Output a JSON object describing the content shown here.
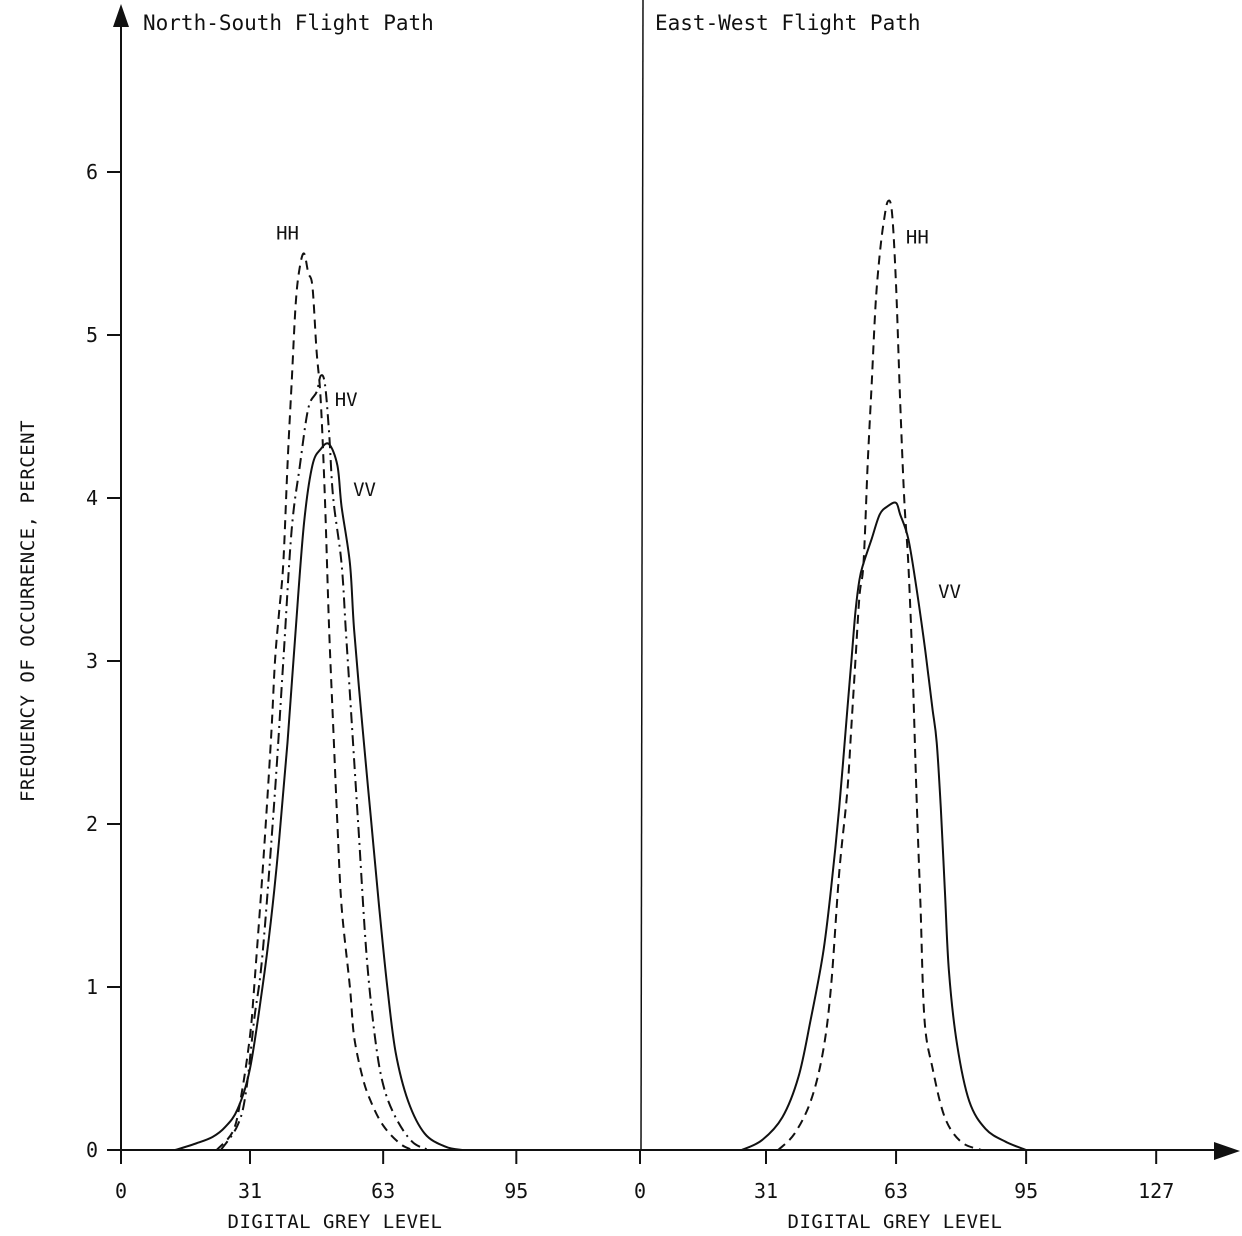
{
  "chart_data": {
    "type": "line",
    "y_axis": {
      "label": "FREQUENCY OF OCCURRENCE, PERCENT",
      "range": [
        0,
        6.8
      ],
      "ticks": [
        0,
        1,
        2,
        3,
        4,
        5,
        6
      ],
      "tick_labels": [
        "0",
        "1",
        "2",
        "3",
        "4",
        "5",
        "6"
      ]
    },
    "grid": false,
    "panels": [
      {
        "title": "North-South Flight Path",
        "xlabel": "DIGITAL GREY LEVEL",
        "xlim": [
          0,
          127
        ],
        "x_ticks": [
          0,
          31,
          63,
          95
        ],
        "x_tick_labels": [
          "0",
          "31",
          "63",
          "95"
        ],
        "series": [
          {
            "name": "HH",
            "line_style": "dashed",
            "points": [
              [
                23,
                0
              ],
              [
                27,
                0.12
              ],
              [
                29,
                0.35
              ],
              [
                31,
                0.7
              ],
              [
                32,
                1.0
              ],
              [
                34,
                1.7
              ],
              [
                36,
                2.5
              ],
              [
                37,
                3.0
              ],
              [
                38,
                3.3
              ],
              [
                39,
                3.6
              ],
              [
                40,
                4.2
              ],
              [
                41,
                4.7
              ],
              [
                42,
                5.2
              ],
              [
                43,
                5.42
              ],
              [
                44,
                5.5
              ],
              [
                45,
                5.38
              ],
              [
                46,
                5.3
              ],
              [
                47,
                4.9
              ],
              [
                48,
                4.6
              ],
              [
                49,
                4.0
              ],
              [
                50,
                3.2
              ],
              [
                51,
                2.6
              ],
              [
                52,
                2.0
              ],
              [
                53,
                1.5
              ],
              [
                55,
                1.0
              ],
              [
                56,
                0.7
              ],
              [
                58,
                0.45
              ],
              [
                60,
                0.3
              ],
              [
                63,
                0.15
              ],
              [
                67,
                0.04
              ],
              [
                70,
                0
              ]
            ]
          },
          {
            "name": "HV",
            "line_style": "dash-dot",
            "points": [
              [
                24,
                0
              ],
              [
                28,
                0.15
              ],
              [
                30,
                0.35
              ],
              [
                32,
                0.8
              ],
              [
                34,
                1.2
              ],
              [
                37,
                2.2
              ],
              [
                39,
                3.0
              ],
              [
                41,
                3.8
              ],
              [
                43,
                4.2
              ],
              [
                45,
                4.55
              ],
              [
                47,
                4.65
              ],
              [
                48,
                4.75
              ],
              [
                49,
                4.7
              ],
              [
                50,
                4.4
              ],
              [
                51,
                4.0
              ],
              [
                53,
                3.6
              ],
              [
                54,
                3.2
              ],
              [
                55,
                2.8
              ],
              [
                57,
                2.0
              ],
              [
                59,
                1.2
              ],
              [
                61,
                0.7
              ],
              [
                63,
                0.4
              ],
              [
                66,
                0.2
              ],
              [
                70,
                0.05
              ],
              [
                74,
                0
              ]
            ]
          },
          {
            "name": "VV",
            "line_style": "solid",
            "points": [
              [
                13,
                0
              ],
              [
                18,
                0.04
              ],
              [
                22,
                0.08
              ],
              [
                25,
                0.14
              ],
              [
                28,
                0.25
              ],
              [
                31,
                0.5
              ],
              [
                34,
                1.0
              ],
              [
                36,
                1.4
              ],
              [
                38,
                1.9
              ],
              [
                40,
                2.5
              ],
              [
                42,
                3.2
              ],
              [
                44,
                3.85
              ],
              [
                46,
                4.2
              ],
              [
                48,
                4.3
              ],
              [
                50,
                4.33
              ],
              [
                52,
                4.2
              ],
              [
                53,
                3.95
              ],
              [
                55,
                3.6
              ],
              [
                56,
                3.2
              ],
              [
                58,
                2.6
              ],
              [
                60,
                2.05
              ],
              [
                62,
                1.5
              ],
              [
                64,
                1.0
              ],
              [
                66,
                0.6
              ],
              [
                69,
                0.3
              ],
              [
                73,
                0.1
              ],
              [
                78,
                0.02
              ],
              [
                82,
                0
              ]
            ]
          }
        ]
      },
      {
        "title": "East-West Flight Path",
        "xlabel": "DIGITAL GREY LEVEL",
        "xlim": [
          0,
          147
        ],
        "x_ticks": [
          0,
          31,
          63,
          95,
          127
        ],
        "x_tick_labels": [
          "0",
          "31",
          "63",
          "95",
          "127"
        ],
        "series": [
          {
            "name": "HH",
            "line_style": "dashed",
            "points": [
              [
                34,
                0
              ],
              [
                38,
                0.1
              ],
              [
                42,
                0.3
              ],
              [
                45,
                0.6
              ],
              [
                47,
                1.0
              ],
              [
                49,
                1.7
              ],
              [
                51,
                2.2
              ],
              [
                52,
                2.6
              ],
              [
                53,
                3.0
              ],
              [
                54,
                3.4
              ],
              [
                55,
                3.6
              ],
              [
                56,
                4.2
              ],
              [
                57,
                4.7
              ],
              [
                58,
                5.2
              ],
              [
                59,
                5.5
              ],
              [
                60,
                5.7
              ],
              [
                61,
                5.82
              ],
              [
                62,
                5.75
              ],
              [
                63,
                5.3
              ],
              [
                64,
                4.6
              ],
              [
                65,
                4.0
              ],
              [
                66,
                3.6
              ],
              [
                67,
                3.0
              ],
              [
                68,
                2.2
              ],
              [
                69,
                1.5
              ],
              [
                70,
                0.8
              ],
              [
                72,
                0.5
              ],
              [
                75,
                0.2
              ],
              [
                79,
                0.05
              ],
              [
                84,
                0
              ]
            ]
          },
          {
            "name": "VV",
            "line_style": "solid",
            "points": [
              [
                25,
                0
              ],
              [
                30,
                0.06
              ],
              [
                35,
                0.2
              ],
              [
                39,
                0.45
              ],
              [
                42,
                0.8
              ],
              [
                45,
                1.2
              ],
              [
                47,
                1.6
              ],
              [
                49,
                2.1
              ],
              [
                51,
                2.7
              ],
              [
                52,
                3.0
              ],
              [
                53,
                3.3
              ],
              [
                54,
                3.5
              ],
              [
                55,
                3.6
              ],
              [
                57,
                3.75
              ],
              [
                59,
                3.9
              ],
              [
                61,
                3.95
              ],
              [
                63,
                3.97
              ],
              [
                64,
                3.9
              ],
              [
                66,
                3.75
              ],
              [
                68,
                3.45
              ],
              [
                70,
                3.1
              ],
              [
                71,
                2.9
              ],
              [
                72,
                2.7
              ],
              [
                73,
                2.5
              ],
              [
                74,
                2.1
              ],
              [
                75,
                1.6
              ],
              [
                76,
                1.1
              ],
              [
                78,
                0.65
              ],
              [
                81,
                0.3
              ],
              [
                85,
                0.13
              ],
              [
                90,
                0.05
              ],
              [
                95,
                0
              ]
            ]
          }
        ]
      }
    ]
  }
}
